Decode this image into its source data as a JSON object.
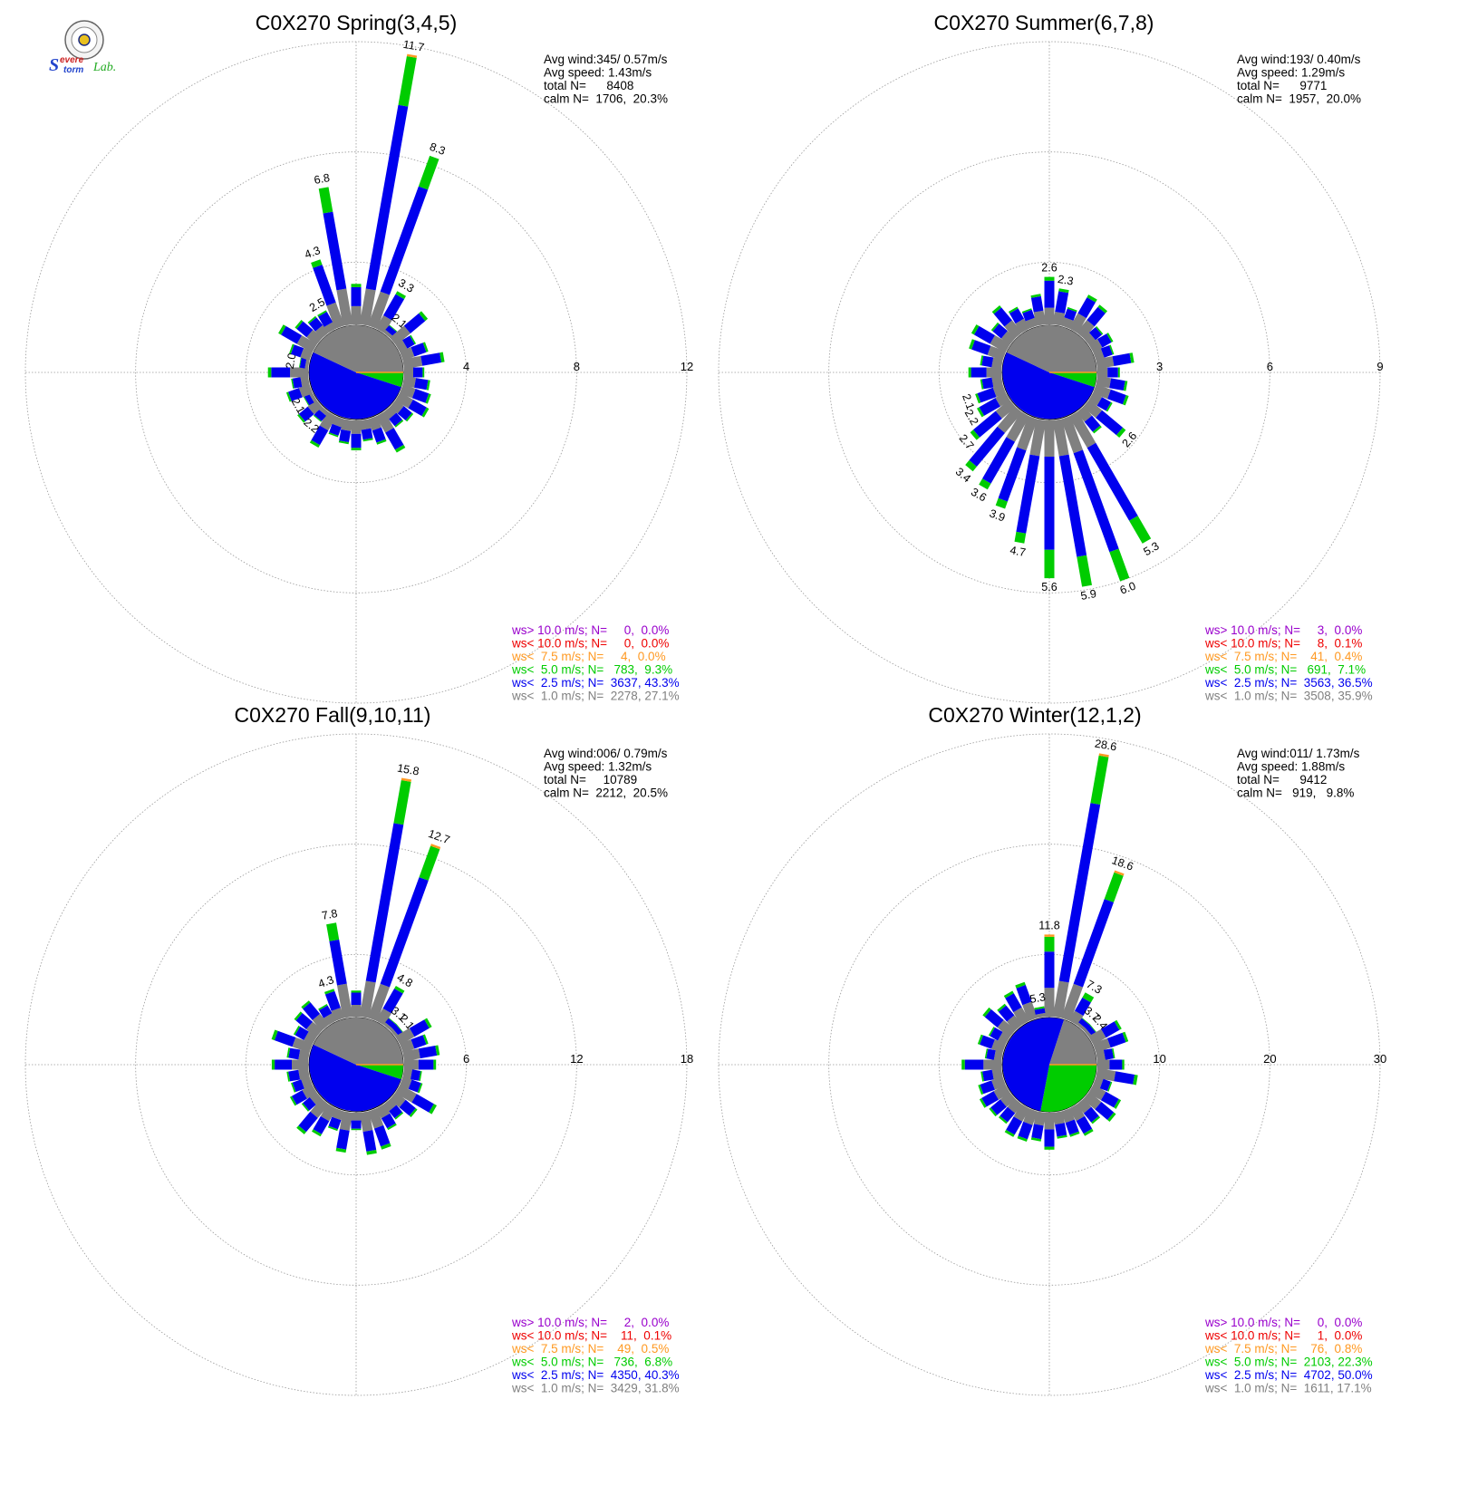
{
  "colors": {
    "gray": "#808080",
    "blue": "#0000ee",
    "green": "#00cc00",
    "orange": "#ff9922",
    "red": "#ee0000",
    "purple": "#9900cc",
    "grid": "#999999"
  },
  "logo": {
    "icon": "severe-storm-lab-seal-icon",
    "text_s": "S",
    "text_evere": "evere",
    "text_storm": "torm",
    "text_lab": "Lab."
  },
  "chart_data": [
    {
      "type": "windrose",
      "title": "C0X270 Spring(3,4,5)",
      "rings": [
        4,
        8,
        12
      ],
      "ring_labels": [
        "4",
        "8",
        "12"
      ],
      "stats": {
        "avg_wind": "Avg wind:345/ 0.57m/s",
        "avg_speed": "Avg speed: 1.43m/s",
        "total_n": "total N=      8408",
        "calm_n": "calm N=  1706,  20.3%"
      },
      "calm_sectors": {
        "white": 0.0,
        "green": 0.05,
        "blue": 0.52,
        "gray": 0.43
      },
      "bars": [
        {
          "dir": 350,
          "total": 6.8,
          "label": "6.8"
        },
        {
          "dir": 10,
          "total": 11.7,
          "label": "11.7"
        },
        {
          "dir": 20,
          "total": 8.3,
          "label": "8.3"
        },
        {
          "dir": 340,
          "total": 4.3,
          "label": "4.3"
        },
        {
          "dir": 330,
          "total": 2.5,
          "label": "2.5"
        },
        {
          "dir": 30,
          "total": 3.3,
          "label": "3.3"
        },
        {
          "dir": 40,
          "total": 2.1,
          "label": "2.1"
        },
        {
          "dir": 280,
          "total": 2.0,
          "label": "2.0"
        },
        {
          "dir": 240,
          "total": 2.1,
          "label": "2.1"
        },
        {
          "dir": 220,
          "total": 2.2,
          "label": "2.2"
        }
      ],
      "legend": [
        {
          "text": "ws> 10.0 m/s; N=     0,  0.0%",
          "color": "purple"
        },
        {
          "text": "ws< 10.0 m/s; N=     0,  0.0%",
          "color": "red"
        },
        {
          "text": "ws<  7.5 m/s; N=     4,  0.0%",
          "color": "orange"
        },
        {
          "text": "ws<  5.0 m/s; N=   783,  9.3%",
          "color": "green"
        },
        {
          "text": "ws<  2.5 m/s; N=  3637, 43.3%",
          "color": "blue"
        },
        {
          "text": "ws<  1.0 m/s; N=  2278, 27.1%",
          "color": "gray"
        }
      ]
    },
    {
      "type": "windrose",
      "title": "C0X270 Summer(6,7,8)",
      "rings": [
        3,
        6,
        9
      ],
      "ring_labels": [
        "3",
        "6",
        "9"
      ],
      "stats": {
        "avg_wind": "Avg wind:193/ 0.40m/s",
        "avg_speed": "Avg speed: 1.29m/s",
        "total_n": "total N=      9771",
        "calm_n": "calm N=  1957,  20.0%"
      },
      "calm_sectors": {
        "white": 0.0,
        "green": 0.05,
        "blue": 0.52,
        "gray": 0.43
      },
      "bars": [
        {
          "dir": 0,
          "total": 2.6,
          "label": "2.6"
        },
        {
          "dir": 10,
          "total": 2.3,
          "label": "2.3"
        },
        {
          "dir": 130,
          "total": 2.6,
          "label": "2.6"
        },
        {
          "dir": 150,
          "total": 5.3,
          "label": "5.3"
        },
        {
          "dir": 160,
          "total": 6.0,
          "label": "6.0"
        },
        {
          "dir": 170,
          "total": 5.9,
          "label": "5.9"
        },
        {
          "dir": 180,
          "total": 5.6,
          "label": "5.6"
        },
        {
          "dir": 190,
          "total": 4.7,
          "label": "4.7"
        },
        {
          "dir": 200,
          "total": 3.9,
          "label": "3.9"
        },
        {
          "dir": 210,
          "total": 3.6,
          "label": "3.6"
        },
        {
          "dir": 220,
          "total": 3.4,
          "label": "3.4"
        },
        {
          "dir": 230,
          "total": 2.7,
          "label": "2.7"
        },
        {
          "dir": 240,
          "total": 2.2,
          "label": "2.2"
        },
        {
          "dir": 250,
          "total": 2.1,
          "label": "2.1"
        }
      ],
      "legend": [
        {
          "text": "ws> 10.0 m/s; N=     3,  0.0%",
          "color": "purple"
        },
        {
          "text": "ws< 10.0 m/s; N=     8,  0.1%",
          "color": "red"
        },
        {
          "text": "ws<  7.5 m/s; N=    41,  0.4%",
          "color": "orange"
        },
        {
          "text": "ws<  5.0 m/s; N=   691,  7.1%",
          "color": "green"
        },
        {
          "text": "ws<  2.5 m/s; N=  3563, 36.5%",
          "color": "blue"
        },
        {
          "text": "ws<  1.0 m/s; N=  3508, 35.9%",
          "color": "gray"
        }
      ]
    },
    {
      "type": "windrose",
      "title": "C0X270 Fall(9,10,11)",
      "rings": [
        6,
        12,
        18
      ],
      "ring_labels": [
        "6",
        "12",
        "18"
      ],
      "stats": {
        "avg_wind": "Avg wind:006/ 0.79m/s",
        "avg_speed": "Avg speed: 1.32m/s",
        "total_n": "total N=     10789",
        "calm_n": "calm N=  2212,  20.5%"
      },
      "calm_sectors": {
        "white": 0.0,
        "green": 0.05,
        "blue": 0.52,
        "gray": 0.43
      },
      "bars": [
        {
          "dir": 10,
          "total": 15.8,
          "label": "15.8"
        },
        {
          "dir": 20,
          "total": 12.7,
          "label": "12.7"
        },
        {
          "dir": 350,
          "total": 7.8,
          "label": "7.8"
        },
        {
          "dir": 340,
          "total": 4.3,
          "label": "4.3"
        },
        {
          "dir": 30,
          "total": 4.8,
          "label": "4.8"
        },
        {
          "dir": 40,
          "total": 3.1,
          "label": "3.1"
        },
        {
          "dir": 50,
          "total": 2.1,
          "label": "2.1"
        }
      ],
      "legend": [
        {
          "text": "ws> 10.0 m/s; N=     2,  0.0%",
          "color": "purple"
        },
        {
          "text": "ws< 10.0 m/s; N=    11,  0.1%",
          "color": "red"
        },
        {
          "text": "ws<  7.5 m/s; N=    49,  0.5%",
          "color": "orange"
        },
        {
          "text": "ws<  5.0 m/s; N=   736,  6.8%",
          "color": "green"
        },
        {
          "text": "ws<  2.5 m/s; N=  4350, 40.3%",
          "color": "blue"
        },
        {
          "text": "ws<  1.0 m/s; N=  3429, 31.8%",
          "color": "gray"
        }
      ]
    },
    {
      "type": "windrose",
      "title": "C0X270 Winter(12,1,2)",
      "rings": [
        10,
        20,
        30
      ],
      "ring_labels": [
        "10",
        "20",
        "30"
      ],
      "stats": {
        "avg_wind": "Avg wind:011/ 1.73m/s",
        "avg_speed": "Avg speed: 1.88m/s",
        "total_n": "total N=      9412",
        "calm_n": "calm N=   919,   9.8%"
      },
      "calm_sectors": {
        "white": 0.0,
        "green": 0.28,
        "blue": 0.52,
        "gray": 0.2
      },
      "bars": [
        {
          "dir": 10,
          "total": 28.6,
          "label": "28.6"
        },
        {
          "dir": 20,
          "total": 18.6,
          "label": "18.6"
        },
        {
          "dir": 0,
          "total": 11.8,
          "label": "11.8"
        },
        {
          "dir": 350,
          "total": 5.3,
          "label": "5.3"
        },
        {
          "dir": 30,
          "total": 7.3,
          "label": "7.3"
        },
        {
          "dir": 40,
          "total": 3.7,
          "label": "3.7"
        },
        {
          "dir": 50,
          "total": 2.4,
          "label": "2.4"
        }
      ],
      "legend": [
        {
          "text": "ws> 10.0 m/s; N=     0,  0.0%",
          "color": "purple"
        },
        {
          "text": "ws< 10.0 m/s; N=     1,  0.0%",
          "color": "red"
        },
        {
          "text": "ws<  7.5 m/s; N=    76,  0.8%",
          "color": "orange"
        },
        {
          "text": "ws<  5.0 m/s; N=  2103, 22.3%",
          "color": "green"
        },
        {
          "text": "ws<  2.5 m/s; N=  4702, 50.0%",
          "color": "blue"
        },
        {
          "text": "ws<  1.0 m/s; N=  1611, 17.1%",
          "color": "gray"
        }
      ]
    }
  ]
}
